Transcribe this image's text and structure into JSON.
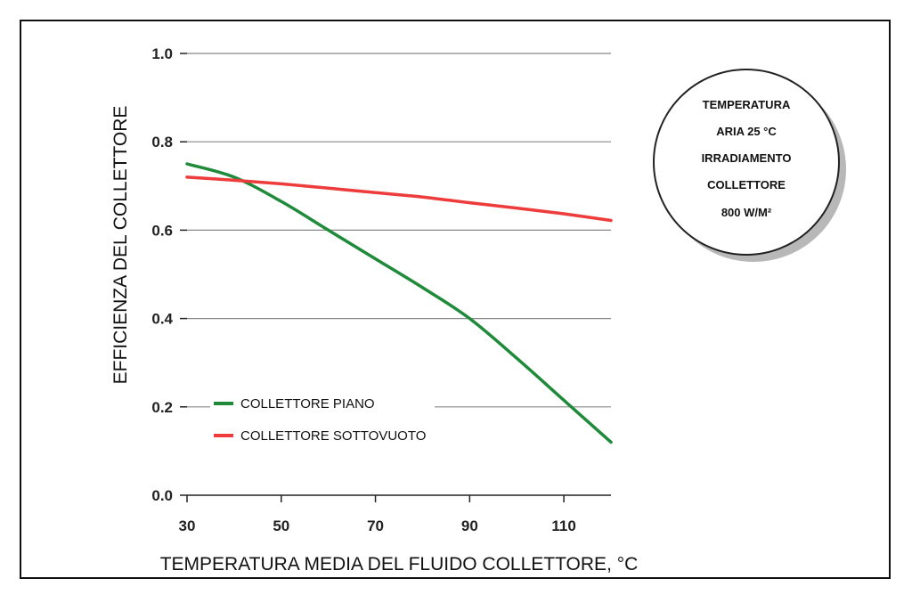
{
  "chart_data": {
    "type": "line",
    "xlabel": "TEMPERATURA MEDIA DEL FLUIDO COLLETTORE, °C",
    "ylabel": "EFFICIENZA DEL COLLETTORE",
    "xlim": [
      30,
      120
    ],
    "ylim": [
      0,
      1.0
    ],
    "x_ticks": [
      30,
      50,
      70,
      90,
      110
    ],
    "y_ticks": [
      0.0,
      0.2,
      0.4,
      0.6,
      0.8,
      1.0
    ],
    "y_tick_labels": [
      "0.0",
      "0.2",
      "0.4",
      "0.6",
      "0.8",
      "1.0"
    ],
    "grid": "horizontal",
    "legend_position": "bottom-left",
    "series": [
      {
        "name": "COLLETTORE PIANO",
        "color": "#1e8a3a",
        "x": [
          30,
          40,
          50,
          60,
          70,
          80,
          90,
          100,
          110,
          120
        ],
        "y": [
          0.75,
          0.72,
          0.665,
          0.6,
          0.535,
          0.47,
          0.4,
          0.31,
          0.215,
          0.12
        ]
      },
      {
        "name": "COLLETTORE SOTTOVUOTO",
        "color": "#ee3b3b",
        "x": [
          30,
          40,
          50,
          60,
          70,
          80,
          90,
          100,
          110,
          120
        ],
        "y": [
          0.72,
          0.713,
          0.705,
          0.695,
          0.685,
          0.675,
          0.662,
          0.65,
          0.637,
          0.622
        ]
      }
    ],
    "annotation": {
      "lines": [
        "TEMPERATURA",
        "ARIA 25 °C",
        "IRRADIAMENTO",
        "COLLETTORE",
        "800 W/M²"
      ]
    }
  }
}
